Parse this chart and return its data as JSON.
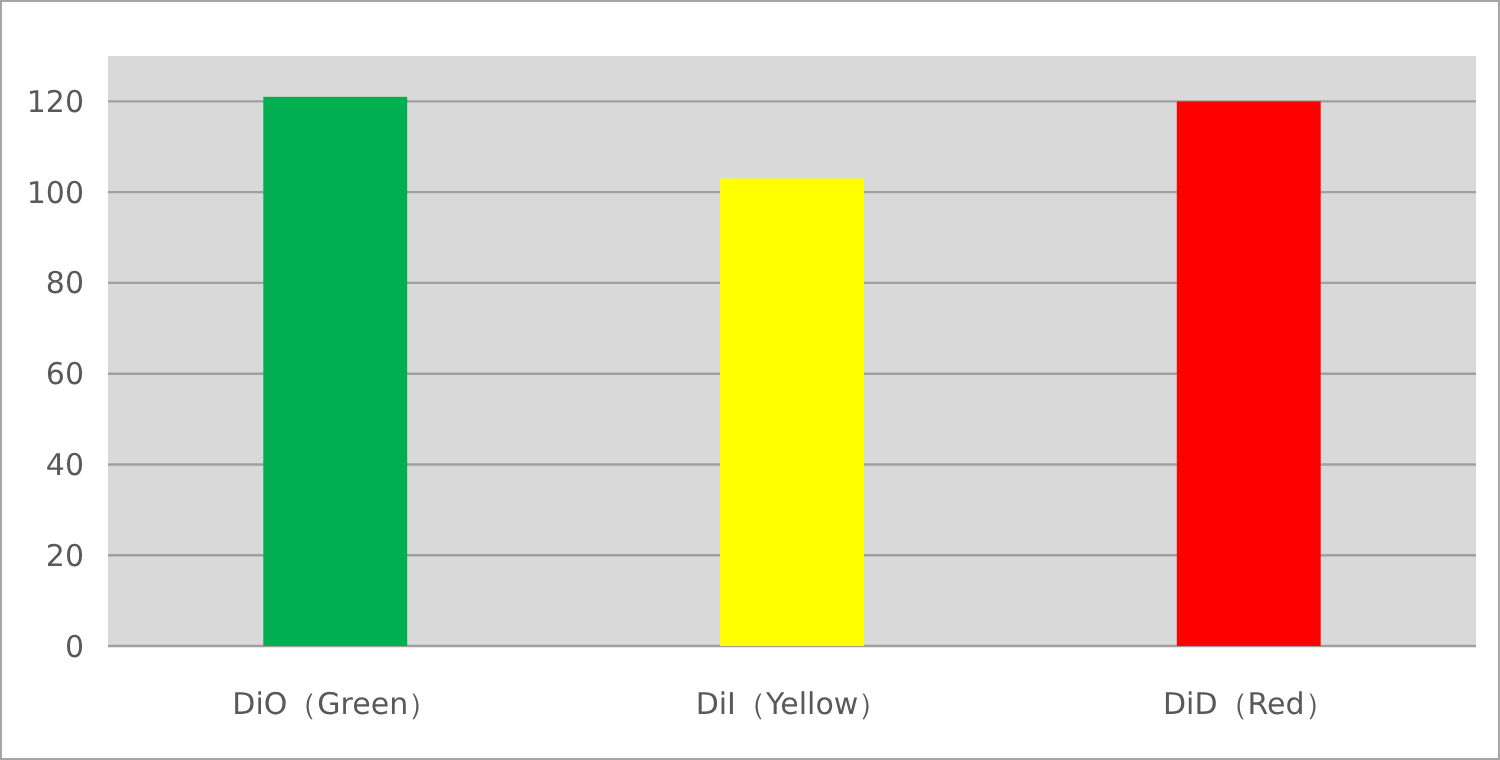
{
  "chart_data": {
    "type": "bar",
    "categories": [
      "DiO（Green）",
      "DiI（Yellow）",
      "DiD（Red）"
    ],
    "values": [
      121,
      103,
      120
    ],
    "colors": [
      "#00b050",
      "#ffff00",
      "#ff0000"
    ],
    "ylim": [
      0,
      130
    ],
    "yticks": [
      0,
      20,
      40,
      60,
      80,
      100,
      120
    ],
    "grid": "y"
  }
}
